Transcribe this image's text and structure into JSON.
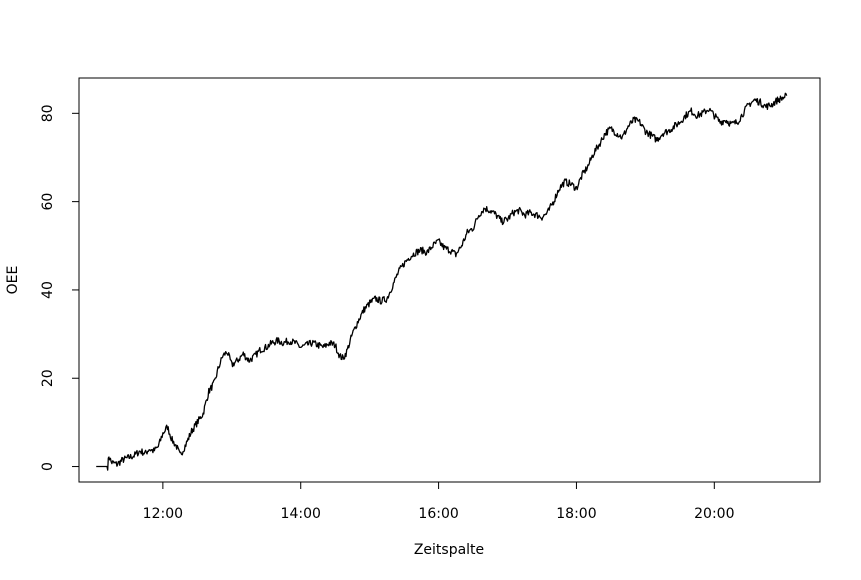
{
  "chart_data": {
    "type": "line",
    "title": "",
    "xlabel": "Zeitspalte",
    "ylabel": "OEE",
    "x_tick_labels": [
      "12:00",
      "14:00",
      "16:00",
      "18:00",
      "20:00"
    ],
    "x_ticks_minutes": [
      720,
      840,
      960,
      1080,
      1200
    ],
    "xlim_minutes": [
      647,
      1292
    ],
    "y_ticks": [
      0,
      20,
      40,
      60,
      80
    ],
    "y_tick_labels": [
      "0",
      "20",
      "40",
      "60",
      "80"
    ],
    "ylim": [
      -3.5,
      88
    ],
    "grid": false,
    "legend": "none",
    "line_color": "#000000",
    "series": [
      {
        "x": [
          662,
          672,
          673,
          675,
          680,
          685,
          690,
          695,
          700,
          705,
          708,
          712,
          716,
          720,
          724,
          728,
          732,
          735,
          740,
          745,
          750,
          755,
          760,
          765,
          768,
          772,
          776,
          780,
          785,
          790,
          795,
          800,
          805,
          810,
          815,
          820,
          825,
          830,
          835,
          840,
          845,
          850,
          855,
          860,
          865,
          870,
          874,
          877,
          880,
          885,
          890,
          895,
          900,
          905,
          910,
          915,
          920,
          925,
          930,
          935,
          940,
          945,
          950,
          955,
          960,
          965,
          970,
          975,
          980,
          985,
          990,
          995,
          1000,
          1005,
          1010,
          1015,
          1020,
          1025,
          1030,
          1035,
          1040,
          1045,
          1050,
          1055,
          1060,
          1065,
          1070,
          1075,
          1080,
          1085,
          1090,
          1095,
          1100,
          1105,
          1110,
          1115,
          1120,
          1125,
          1130,
          1135,
          1140,
          1145,
          1150,
          1155,
          1160,
          1165,
          1170,
          1175,
          1180,
          1185,
          1190,
          1195,
          1200,
          1205,
          1210,
          1215,
          1220,
          1225,
          1230,
          1235,
          1240,
          1245,
          1250,
          1255,
          1260,
          1263
        ],
        "y": [
          0,
          0,
          2.5,
          1,
          0.5,
          1.5,
          2,
          2.5,
          3.5,
          3,
          4,
          3.5,
          4.5,
          7.5,
          9,
          6,
          4.5,
          2.5,
          5,
          8,
          10,
          12,
          17,
          19,
          22,
          25,
          26,
          23,
          24,
          25.5,
          24,
          25,
          26.5,
          27,
          28,
          28.5,
          28,
          28.5,
          28,
          27,
          27.5,
          28,
          27.5,
          27,
          28,
          27.5,
          25,
          24.5,
          26,
          30,
          33,
          35.5,
          37,
          38,
          37.5,
          38,
          41,
          44,
          46,
          47.5,
          48.5,
          49,
          48.5,
          50,
          51,
          49.5,
          49,
          48,
          50,
          53,
          54,
          57,
          58.5,
          58,
          57,
          55.5,
          56,
          57.5,
          58,
          57,
          57.5,
          57,
          56.5,
          57.5,
          60,
          63,
          64.5,
          64,
          63,
          66,
          68,
          71,
          73,
          75.5,
          76.5,
          75.5,
          74.5,
          77,
          78.5,
          78,
          76,
          75,
          74,
          75.5,
          76,
          77,
          78,
          79.5,
          80.5,
          79.5,
          80,
          81,
          79.5,
          78,
          78.5,
          77.5,
          78,
          80,
          82,
          83,
          82.5,
          81.5,
          82,
          83,
          83.5,
          84
        ]
      }
    ]
  }
}
